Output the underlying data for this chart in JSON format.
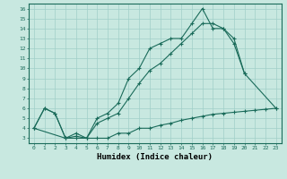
{
  "xlabel": "Humidex (Indice chaleur)",
  "bg_color": "#c8e8e0",
  "grid_color": "#a0cfc8",
  "line_color": "#1a6b5a",
  "xlim": [
    -0.5,
    23.5
  ],
  "ylim": [
    2.5,
    16.5
  ],
  "xticks": [
    0,
    1,
    2,
    3,
    4,
    5,
    6,
    7,
    8,
    9,
    10,
    11,
    12,
    13,
    14,
    15,
    16,
    17,
    18,
    19,
    20,
    21,
    22,
    23
  ],
  "yticks": [
    3,
    4,
    5,
    6,
    7,
    8,
    9,
    10,
    11,
    12,
    13,
    14,
    15,
    16
  ],
  "line1_x": [
    0,
    1,
    2,
    3,
    4,
    5,
    6,
    7,
    8,
    9,
    10,
    11,
    12,
    13,
    14,
    15,
    16,
    17,
    18,
    19,
    20
  ],
  "line1_y": [
    4,
    6,
    5.5,
    3.0,
    3.2,
    3.0,
    5.0,
    5.5,
    6.5,
    9.0,
    10.0,
    12.0,
    12.5,
    13.0,
    13.0,
    14.5,
    16.0,
    14.0,
    14.0,
    13.0,
    9.5
  ],
  "line2_x": [
    0,
    1,
    2,
    3,
    4,
    5,
    6,
    7,
    8,
    9,
    10,
    11,
    12,
    13,
    14,
    15,
    16,
    17,
    18,
    19,
    20,
    23
  ],
  "line2_y": [
    4,
    6,
    5.5,
    3.0,
    3.5,
    3.0,
    4.5,
    5.0,
    5.5,
    7.0,
    8.5,
    9.8,
    10.5,
    11.5,
    12.5,
    13.5,
    14.5,
    14.5,
    14.0,
    12.5,
    9.5,
    6.0
  ],
  "line3_x": [
    0,
    3,
    4,
    5,
    6,
    7,
    8,
    9,
    10,
    11,
    12,
    13,
    14,
    15,
    16,
    17,
    18,
    19,
    20,
    21,
    22,
    23
  ],
  "line3_y": [
    4,
    3.0,
    3.0,
    3.0,
    3.0,
    3.0,
    3.5,
    3.5,
    4.0,
    4.0,
    4.3,
    4.5,
    4.8,
    5.0,
    5.2,
    5.4,
    5.5,
    5.6,
    5.7,
    5.8,
    5.9,
    6.0
  ]
}
